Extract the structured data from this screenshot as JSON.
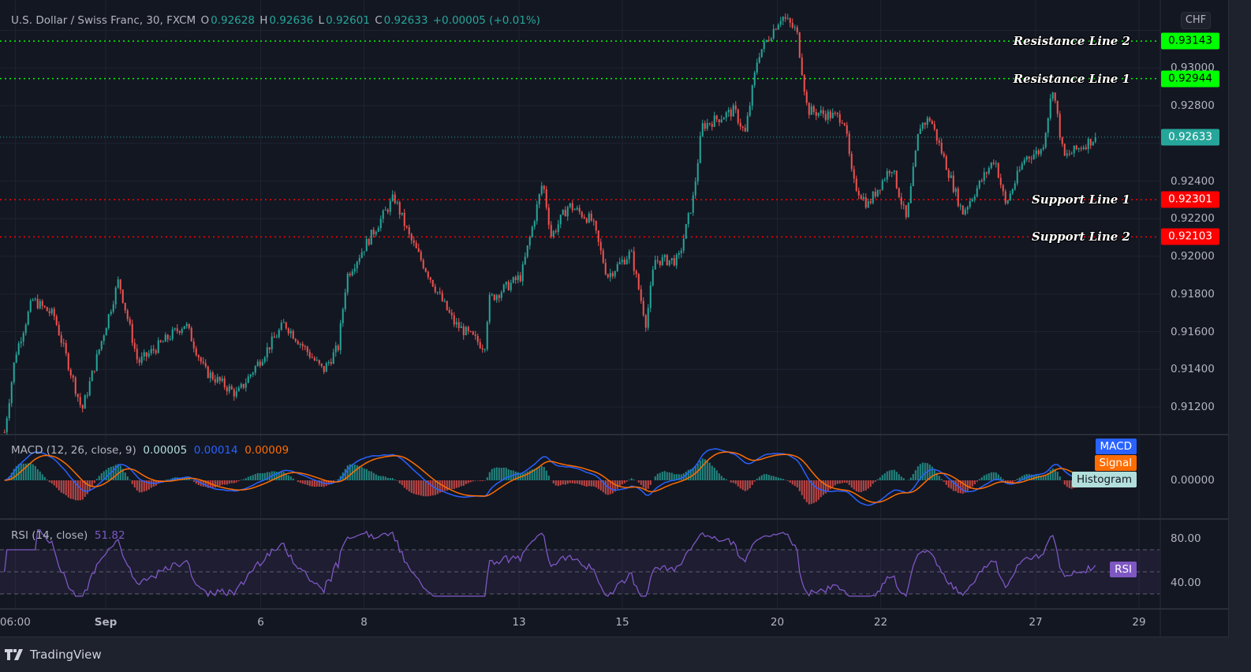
{
  "header": {
    "symbol": "U.S. Dollar / Swiss Franc, 30, FXCM",
    "o_label": "O",
    "o": "0.92628",
    "h_label": "H",
    "h": "0.92636",
    "l_label": "L",
    "l": "0.92601",
    "c_label": "C",
    "c": "0.92633",
    "change": "+0.00005 (+0.01%)"
  },
  "currency": "CHF",
  "current_price": "0.92633",
  "price_axis": [
    "0.93000",
    "0.92800",
    "0.92400",
    "0.92200",
    "0.92000",
    "0.91800",
    "0.91600",
    "0.91400",
    "0.91200"
  ],
  "levels": [
    {
      "label": "Resistance Line 2",
      "value": "0.93143",
      "color": "#00ff00"
    },
    {
      "label": "Resistance Line 1",
      "value": "0.92944",
      "color": "#00ff00"
    },
    {
      "label": "Support Line 1",
      "value": "0.92301",
      "color": "#ff0000"
    },
    {
      "label": "Support Line 2",
      "value": "0.92103",
      "color": "#ff0000"
    }
  ],
  "macd": {
    "title": "MACD (12, 26, close, 9)",
    "histogram_value": "0.00005",
    "macd_value": "0.00014",
    "signal_value": "0.00009",
    "tag_macd": "MACD",
    "tag_signal": "Signal",
    "tag_histogram": "Histogram",
    "axis": "0.00000",
    "colors": {
      "macd": "#2962ff",
      "signal": "#ff6d00",
      "hist_up": "#26a69a",
      "hist_down": "#ef5350"
    }
  },
  "rsi": {
    "title": "RSI (14, close)",
    "value": "51.82",
    "tag": "RSI",
    "axis": [
      "80.00",
      "40.00"
    ],
    "color": "#7e57c2"
  },
  "time_axis": [
    {
      "label": "06:00",
      "time": "Aug 30 06:00"
    },
    {
      "label": "Sep",
      "time": "Sep 1 00:00"
    },
    {
      "label": "6",
      "time": "Sep 6 00:00"
    },
    {
      "label": "8",
      "time": "Sep 8 00:00"
    },
    {
      "label": "13",
      "time": "Sep 13 00:00"
    },
    {
      "label": "15",
      "time": "Sep 15 00:00"
    },
    {
      "label": "20",
      "time": "Sep 20 00:00"
    },
    {
      "label": "22",
      "time": "Sep 22 00:00"
    },
    {
      "label": "27",
      "time": "Sep 27 00:00"
    },
    {
      "label": "29",
      "time": "Sep 29 00:00"
    }
  ],
  "brand": "TradingView",
  "chart_data": {
    "type": "candlestick",
    "interval": "30",
    "colors": {
      "up": "#26a69a",
      "down": "#ef5350"
    },
    "ylim": [
      0.9104,
      0.934
    ],
    "grid": true,
    "price_path": [
      {
        "time": "Aug 30 01:00",
        "close": 0.91066
      },
      {
        "time": "Aug 30 06:00",
        "close": 0.91476
      },
      {
        "time": "Aug 30 14:00",
        "close": 0.91769
      },
      {
        "time": "Aug 31 00:00",
        "close": 0.91685
      },
      {
        "time": "Aug 31 13:00",
        "close": 0.91182
      },
      {
        "time": "Sep 1 06:00",
        "close": 0.91874
      },
      {
        "time": "Sep 1 15:00",
        "close": 0.91434
      },
      {
        "time": "Sep 2 13:00",
        "close": 0.91644
      },
      {
        "time": "Sep 2 22:00",
        "close": 0.91392
      },
      {
        "time": "Sep 3 13:00",
        "close": 0.91266
      },
      {
        "time": "Sep 6 11:00",
        "close": 0.91644
      },
      {
        "time": "Sep 7 05:00",
        "close": 0.91392
      },
      {
        "time": "Sep 7 12:00",
        "close": 0.91518
      },
      {
        "time": "Sep 7 16:00",
        "close": 0.91895
      },
      {
        "time": "Sep 8 14:00",
        "close": 0.92314
      },
      {
        "time": "Sep 8 21:00",
        "close": 0.92105
      },
      {
        "time": "Sep 9 12:00",
        "close": 0.91769
      },
      {
        "time": "Sep 9 18:00",
        "close": 0.91644
      },
      {
        "time": "Sep 10 08:00",
        "close": 0.91518
      },
      {
        "time": "Sep 10 10:00",
        "close": 0.91769
      },
      {
        "time": "Sep 13 01:00",
        "close": 0.91895
      },
      {
        "time": "Sep 13 11:00",
        "close": 0.92398
      },
      {
        "time": "Sep 13 15:00",
        "close": 0.92105
      },
      {
        "time": "Sep 13 23:00",
        "close": 0.92272
      },
      {
        "time": "Sep 14 10:00",
        "close": 0.92188
      },
      {
        "time": "Sep 14 17:00",
        "close": 0.91895
      },
      {
        "time": "Sep 15 04:00",
        "close": 0.92021
      },
      {
        "time": "Sep 15 11:00",
        "close": 0.91644
      },
      {
        "time": "Sep 15 15:00",
        "close": 0.91979
      },
      {
        "time": "Sep 16 02:00",
        "close": 0.91979
      },
      {
        "time": "Sep 16 09:00",
        "close": 0.92314
      },
      {
        "time": "Sep 16 13:00",
        "close": 0.92691
      },
      {
        "time": "Sep 17 04:00",
        "close": 0.92775
      },
      {
        "time": "Sep 17 09:00",
        "close": 0.92649
      },
      {
        "time": "Sep 17 15:00",
        "close": 0.93068
      },
      {
        "time": "Sep 20 02:00",
        "close": 0.93278
      },
      {
        "time": "Sep 20 09:00",
        "close": 0.93194
      },
      {
        "time": "Sep 20 14:00",
        "close": 0.92775
      },
      {
        "time": "Sep 21 07:00",
        "close": 0.92733
      },
      {
        "time": "Sep 21 11:00",
        "close": 0.92398
      },
      {
        "time": "Sep 21 18:00",
        "close": 0.92272
      },
      {
        "time": "Sep 22 05:00",
        "close": 0.92482
      },
      {
        "time": "Sep 22 12:00",
        "close": 0.92188
      },
      {
        "time": "Sep 22 18:00",
        "close": 0.92691
      },
      {
        "time": "Sep 22 23:00",
        "close": 0.92733
      },
      {
        "time": "Sep 23 14:00",
        "close": 0.9223
      },
      {
        "time": "Sep 24 05:00",
        "close": 0.92523
      },
      {
        "time": "Sep 24 10:00",
        "close": 0.92272
      },
      {
        "time": "Sep 24 19:00",
        "close": 0.92523
      },
      {
        "time": "Sep 27 03:00",
        "close": 0.92565
      },
      {
        "time": "Sep 27 08:00",
        "close": 0.92901
      },
      {
        "time": "Sep 27 13:00",
        "close": 0.92523
      },
      {
        "time": "Sep 28 04:00",
        "close": 0.92633
      }
    ]
  }
}
